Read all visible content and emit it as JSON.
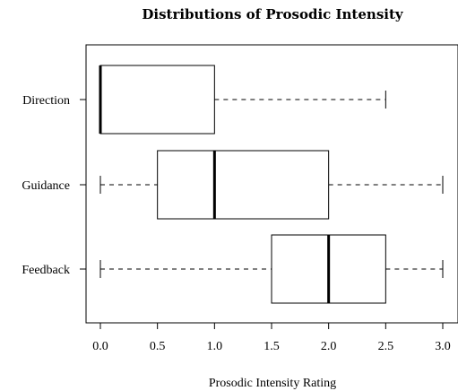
{
  "chart_data": {
    "type": "boxplot",
    "orientation": "horizontal",
    "title": "Distributions of Prosodic Intensity",
    "xlabel": "Prosodic Intensity Rating",
    "ylabel": "",
    "xlim": [
      -0.12,
      3.12
    ],
    "xticks": [
      0.0,
      0.5,
      1.0,
      1.5,
      2.0,
      2.5,
      3.0
    ],
    "xtick_labels": [
      "0.0",
      "0.5",
      "1.0",
      "1.5",
      "2.0",
      "2.5",
      "3.0"
    ],
    "grid": false,
    "categories": [
      "Direction",
      "Guidance",
      "Feedback"
    ],
    "boxes": [
      {
        "label": "Direction",
        "whisker_low": 0.0,
        "q1": 0.0,
        "median": 0.0,
        "q3": 1.0,
        "whisker_high": 2.5
      },
      {
        "label": "Guidance",
        "whisker_low": 0.0,
        "q1": 0.5,
        "median": 1.0,
        "q3": 2.0,
        "whisker_high": 3.0
      },
      {
        "label": "Feedback",
        "whisker_low": 0.0,
        "q1": 1.5,
        "median": 2.0,
        "q3": 2.5,
        "whisker_high": 3.0
      }
    ]
  }
}
